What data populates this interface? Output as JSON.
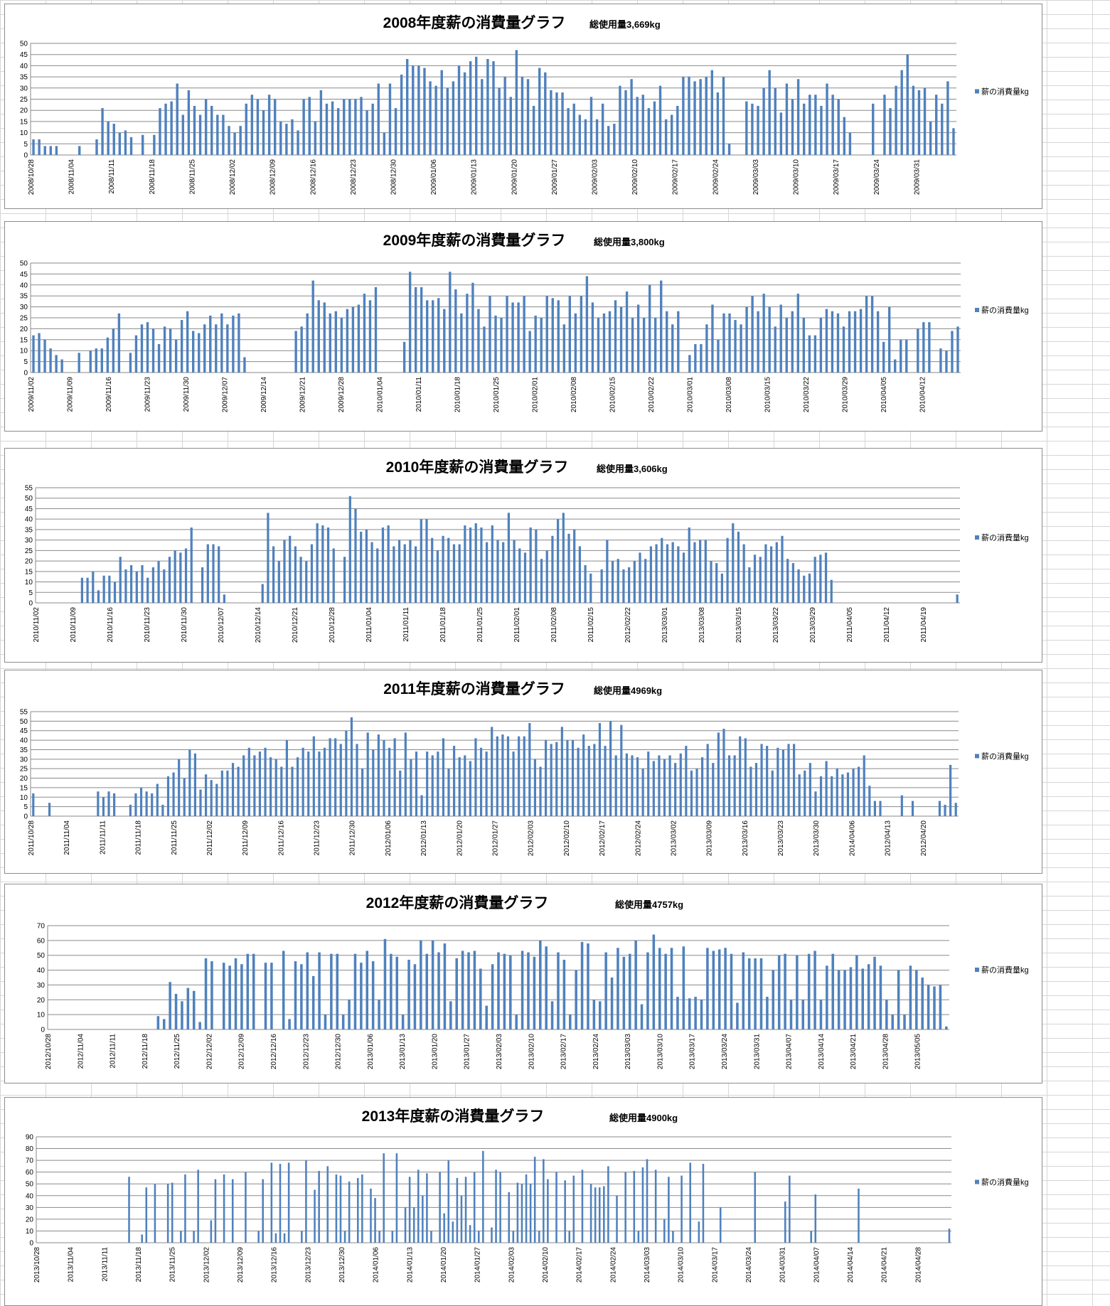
{
  "legend_label": "薪の消費量kg",
  "bar_color": "#4f81bd",
  "chart_data": [
    {
      "type": "bar",
      "title": "2008年度薪の消費量グラフ",
      "total": "総使用量3,669kg",
      "ylim": [
        0,
        50
      ],
      "ystep": 5,
      "xlabels": [
        "2008/10/28",
        "2008/11/04",
        "2008/11/11",
        "2008/11/18",
        "2008/11/25",
        "2008/12/02",
        "2008/12/09",
        "2008/12/16",
        "2008/12/23",
        "2008/12/30",
        "2009/01/06",
        "2009/01/13",
        "2009/01/20",
        "2009/01/27",
        "2009/02/03",
        "2009/02/10",
        "2009/02/17",
        "2009/02/24",
        "2009/03/03",
        "2009/03/10",
        "2009/03/17",
        "2009/03/24",
        "2009/03/31"
      ],
      "values": [
        7,
        7,
        4,
        4,
        4,
        0,
        0,
        0,
        4,
        0,
        0,
        7,
        21,
        15,
        14,
        10,
        11,
        8,
        0,
        9,
        0,
        9,
        21,
        23,
        24,
        32,
        18,
        29,
        22,
        18,
        25,
        22,
        18,
        18,
        13,
        10,
        13,
        23,
        27,
        25,
        20,
        27,
        25,
        15,
        14,
        16,
        11,
        25,
        26,
        15,
        29,
        23,
        24,
        21,
        25,
        25,
        25,
        26,
        20,
        23,
        32,
        10,
        32,
        21,
        36,
        43,
        40,
        40,
        39,
        33,
        31,
        38,
        30,
        33,
        40,
        37,
        42,
        44,
        34,
        43,
        42,
        30,
        35,
        26,
        47,
        35,
        34,
        22,
        39,
        37,
        29,
        28,
        28,
        21,
        23,
        18,
        16,
        26,
        16,
        23,
        13,
        14,
        31,
        29,
        34,
        26,
        27,
        21,
        24,
        31,
        16,
        18,
        22,
        35,
        35,
        33,
        34,
        35,
        38,
        28,
        35,
        5,
        0,
        0,
        24,
        23,
        22,
        30,
        38,
        30,
        19,
        32,
        25,
        34,
        23,
        27,
        27,
        22,
        32,
        27,
        25,
        17,
        10,
        0,
        0,
        0,
        23,
        0,
        27,
        21,
        31,
        38,
        45,
        31,
        29,
        30,
        15,
        27,
        23,
        33,
        12
      ]
    },
    {
      "type": "bar",
      "title": "2009年度薪の消費量グラフ",
      "total": "総使用量3,800kg",
      "ylim": [
        0,
        50
      ],
      "ystep": 5,
      "xlabels": [
        "2009/11/02",
        "2009/11/09",
        "2009/11/16",
        "2009/11/23",
        "2009/11/30",
        "2009/12/07",
        "2009/12/14",
        "2009/12/21",
        "2009/12/28",
        "2010/01/04",
        "2010/01/11",
        "2010/01/18",
        "2010/01/25",
        "2010/02/01",
        "2010/02/08",
        "2010/02/15",
        "2010/02/22",
        "2010/03/01",
        "2010/03/08",
        "2010/03/15",
        "2010/03/22",
        "2010/03/29",
        "2010/04/05",
        "2010/04/12"
      ],
      "values": [
        17,
        18,
        15,
        11,
        8,
        6,
        0,
        0,
        9,
        0,
        10,
        11,
        11,
        16,
        20,
        27,
        0,
        9,
        17,
        22,
        23,
        20,
        13,
        21,
        20,
        15,
        24,
        28,
        19,
        18,
        22,
        26,
        22,
        27,
        22,
        26,
        27,
        7,
        0,
        0,
        0,
        0,
        0,
        0,
        0,
        0,
        19,
        21,
        27,
        42,
        33,
        32,
        27,
        28,
        25,
        29,
        30,
        31,
        36,
        33,
        39,
        0,
        0,
        0,
        0,
        14,
        46,
        39,
        39,
        33,
        33,
        34,
        29,
        46,
        38,
        27,
        36,
        41,
        29,
        21,
        35,
        26,
        25,
        35,
        32,
        32,
        35,
        19,
        26,
        25,
        35,
        34,
        33,
        22,
        35,
        27,
        35,
        44,
        32,
        25,
        27,
        28,
        33,
        30,
        37,
        25,
        31,
        25,
        40,
        25,
        42,
        28,
        22,
        28,
        0,
        8,
        13,
        13,
        22,
        31,
        15,
        27,
        27,
        24,
        22,
        30,
        35,
        28,
        36,
        30,
        21,
        31,
        25,
        28,
        36,
        25,
        17,
        17,
        25,
        29,
        28,
        27,
        21,
        28,
        28,
        29,
        35,
        35,
        28,
        14,
        30,
        6,
        15,
        15,
        0,
        20,
        23,
        23,
        0,
        11,
        10,
        19,
        21
      ]
    },
    {
      "type": "bar",
      "title": "2010年度薪の消費量グラフ",
      "total": "総使用量3,606kg",
      "ylim": [
        0,
        55
      ],
      "ystep": 5,
      "xlabels": [
        "2010/11/02",
        "2010/11/09",
        "2010/11/16",
        "2010/11/23",
        "2010/11/30",
        "2010/12/07",
        "2010/12/14",
        "2010/12/21",
        "2010/12/28",
        "2011/01/04",
        "2011/01/11",
        "2011/01/18",
        "2011/01/25",
        "2011/02/01",
        "2011/02/08",
        "2011/02/15",
        "2012/02/22",
        "2013/03/01",
        "2013/03/08",
        "2013/03/15",
        "2013/03/22",
        "2013/03/29",
        "2011/04/05",
        "2011/04/12",
        "2011/04/19"
      ],
      "values": [
        0,
        0,
        0,
        0,
        0,
        0,
        0,
        0,
        12,
        12,
        15,
        6,
        13,
        13,
        10,
        22,
        16,
        18,
        15,
        18,
        12,
        17,
        20,
        16,
        22,
        25,
        24,
        26,
        36,
        0,
        17,
        28,
        28,
        27,
        4,
        0,
        0,
        0,
        0,
        0,
        0,
        9,
        43,
        27,
        20,
        30,
        32,
        27,
        22,
        20,
        28,
        38,
        37,
        36,
        26,
        0,
        22,
        51,
        45,
        34,
        35,
        29,
        26,
        36,
        37,
        27,
        30,
        28,
        30,
        27,
        40,
        40,
        31,
        25,
        32,
        31,
        28,
        28,
        37,
        36,
        38,
        36,
        29,
        37,
        30,
        29,
        43,
        30,
        26,
        24,
        36,
        35,
        21,
        25,
        32,
        40,
        43,
        33,
        35,
        27,
        18,
        14,
        0,
        16,
        30,
        20,
        21,
        16,
        17,
        20,
        24,
        21,
        27,
        28,
        31,
        28,
        29,
        27,
        24,
        36,
        29,
        30,
        30,
        20,
        19,
        14,
        31,
        38,
        34,
        28,
        17,
        23,
        22,
        28,
        27,
        29,
        32,
        21,
        19,
        16,
        13,
        14,
        22,
        23,
        24,
        11,
        0,
        0,
        0,
        0,
        0,
        0,
        0,
        0,
        0,
        0,
        0,
        0,
        0,
        0,
        0,
        0,
        0,
        0,
        0,
        0,
        0,
        0,
        4
      ]
    },
    {
      "type": "bar",
      "title": "2011年度薪の消費量グラフ",
      "total": "総使用量4969kg",
      "ylim": [
        0,
        55
      ],
      "ystep": 5,
      "xlabels": [
        "2011/10/28",
        "2011/11/04",
        "2011/11/11",
        "2011/11/18",
        "2011/11/25",
        "2011/12/02",
        "2011/12/09",
        "2011/12/16",
        "2011/12/23",
        "2011/12/30",
        "2012/01/06",
        "2012/01/13",
        "2012/01/20",
        "2012/01/27",
        "2012/02/03",
        "2012/02/10",
        "2012/02/17",
        "2012/02/24",
        "2013/03/02",
        "2013/03/09",
        "2013/03/16",
        "2013/03/23",
        "2013/03/30",
        "2014/04/06",
        "2012/04/13",
        "2012/04/20"
      ],
      "values": [
        12,
        0,
        0,
        7,
        0,
        0,
        0,
        0,
        0,
        0,
        0,
        0,
        13,
        10,
        13,
        12,
        0,
        0,
        6,
        12,
        15,
        13,
        12,
        17,
        6,
        21,
        23,
        30,
        20,
        35,
        33,
        14,
        22,
        19,
        17,
        24,
        24,
        28,
        26,
        32,
        36,
        32,
        34,
        36,
        31,
        30,
        26,
        40,
        26,
        31,
        36,
        34,
        42,
        34,
        36,
        41,
        41,
        38,
        45,
        52,
        38,
        25,
        44,
        35,
        43,
        40,
        36,
        41,
        24,
        44,
        30,
        34,
        11,
        34,
        32,
        34,
        41,
        25,
        37,
        31,
        32,
        29,
        41,
        36,
        34,
        47,
        42,
        43,
        42,
        34,
        42,
        42,
        49,
        30,
        26,
        40,
        38,
        39,
        47,
        40,
        40,
        36,
        43,
        37,
        38,
        49,
        37,
        50,
        32,
        48,
        33,
        32,
        31,
        25,
        34,
        29,
        32,
        30,
        32,
        28,
        33,
        37,
        24,
        25,
        31,
        38,
        28,
        44,
        46,
        32,
        32,
        42,
        41,
        26,
        28,
        38,
        37,
        24,
        36,
        35,
        38,
        38,
        22,
        24,
        28,
        13,
        21,
        29,
        21,
        25,
        22,
        23,
        25,
        26,
        32,
        16,
        8,
        8,
        0,
        0,
        0,
        11,
        0,
        8,
        0,
        0,
        0,
        0,
        8,
        6,
        27,
        7
      ]
    },
    {
      "type": "bar",
      "title": "2012年度薪の消費量グラフ",
      "total": "総使用量4757kg",
      "ylim": [
        0,
        70
      ],
      "ystep": 10,
      "xlabels": [
        "2012/10/28",
        "2012/11/04",
        "2012/11/11",
        "2012/11/18",
        "2012/11/25",
        "2012/12/02",
        "2012/12/09",
        "2012/12/16",
        "2012/12/23",
        "2012/12/30",
        "2013/01/06",
        "2013/01/13",
        "2013/01/20",
        "2013/01/27",
        "2013/02/03",
        "2013/02/10",
        "2013/02/17",
        "2013/02/24",
        "2013/03/03",
        "2013/03/10",
        "2013/03/17",
        "2013/03/24",
        "2013/03/31",
        "2013/04/07",
        "2013/04/14",
        "2013/04/21",
        "2013/04/28",
        "2013/05/05"
      ],
      "values": [
        0,
        0,
        0,
        0,
        0,
        0,
        0,
        0,
        0,
        0,
        0,
        0,
        0,
        0,
        0,
        0,
        0,
        0,
        9,
        7,
        32,
        24,
        19,
        28,
        26,
        5,
        48,
        46,
        0,
        45,
        43,
        48,
        44,
        51,
        51,
        0,
        45,
        45,
        0,
        53,
        7,
        46,
        44,
        52,
        36,
        52,
        10,
        51,
        51,
        10,
        20,
        51,
        45,
        53,
        46,
        20,
        61,
        51,
        49,
        10,
        47,
        44,
        60,
        51,
        60,
        52,
        58,
        19,
        48,
        53,
        52,
        53,
        41,
        16,
        44,
        52,
        51,
        50,
        10,
        53,
        52,
        49,
        60,
        56,
        19,
        52,
        47,
        10,
        40,
        59,
        58,
        20,
        19,
        52,
        35,
        55,
        49,
        51,
        60,
        17,
        52,
        64,
        55,
        51,
        55,
        22,
        56,
        21,
        22,
        20,
        55,
        53,
        54,
        55,
        51,
        18,
        52,
        48,
        48,
        48,
        22,
        40,
        50,
        51,
        20,
        50,
        20,
        51,
        53,
        20,
        43,
        51,
        40,
        40,
        42,
        50,
        41,
        44,
        49,
        43,
        20,
        10,
        40,
        10,
        43,
        40,
        35,
        30,
        29,
        30,
        2
      ]
    },
    {
      "type": "bar",
      "title": "2013年度薪の消費量グラフ",
      "total": "総使用量4900kg",
      "ylim": [
        0,
        90
      ],
      "ystep": 10,
      "xlabels": [
        "2013/10/28",
        "2013/11/04",
        "2013/11/11",
        "2013/11/18",
        "2013/11/25",
        "2013/12/02",
        "2013/12/09",
        "2013/12/16",
        "2013/12/23",
        "2013/12/30",
        "2014/01/06",
        "2014/01/13",
        "2014/01/20",
        "2014/01/27",
        "2014/02/03",
        "2014/02/10",
        "2014/02/17",
        "2014/02/24",
        "2014/03/03",
        "2014/03/10",
        "2014/03/17",
        "2014/03/24",
        "2014/03/31",
        "2014/04/07",
        "2014/04/14",
        "2014/04/21",
        "2014/04/28"
      ],
      "values": [
        0,
        0,
        0,
        0,
        0,
        0,
        0,
        0,
        0,
        0,
        0,
        0,
        0,
        0,
        0,
        0,
        0,
        0,
        0,
        0,
        0,
        56,
        0,
        0,
        7,
        47,
        0,
        50,
        0,
        0,
        50,
        51,
        0,
        10,
        58,
        0,
        10,
        62,
        0,
        0,
        19,
        54,
        0,
        58,
        0,
        54,
        0,
        0,
        60,
        0,
        0,
        10,
        54,
        0,
        68,
        8,
        67,
        8,
        68,
        0,
        0,
        10,
        70,
        0,
        45,
        61,
        0,
        65,
        0,
        58,
        57,
        10,
        52,
        0,
        55,
        58,
        0,
        46,
        38,
        10,
        76,
        0,
        10,
        76,
        0,
        30,
        56,
        30,
        62,
        40,
        59,
        10,
        0,
        60,
        25,
        70,
        18,
        55,
        40,
        56,
        15,
        60,
        10,
        78,
        0,
        13,
        62,
        60,
        0,
        43,
        10,
        51,
        50,
        58,
        50,
        73,
        10,
        71,
        54,
        0,
        60,
        0,
        53,
        10,
        57,
        0,
        62,
        0,
        50,
        47,
        47,
        48,
        65,
        0,
        40,
        0,
        60,
        0,
        61,
        10,
        64,
        71,
        0,
        62,
        0,
        20,
        56,
        10,
        0,
        57,
        0,
        68,
        0,
        18,
        67,
        0,
        0,
        0,
        30,
        0,
        0,
        0,
        0,
        0,
        0,
        0,
        60,
        0,
        0,
        0,
        0,
        0,
        0,
        35,
        57,
        0,
        0,
        0,
        0,
        10,
        41,
        0,
        0,
        0,
        0,
        0,
        0,
        0,
        0,
        0,
        46,
        0,
        0,
        0,
        0,
        0,
        0,
        0,
        0,
        0,
        0,
        0,
        0,
        0,
        0,
        0,
        0,
        0,
        0,
        0,
        0,
        12
      ]
    }
  ]
}
